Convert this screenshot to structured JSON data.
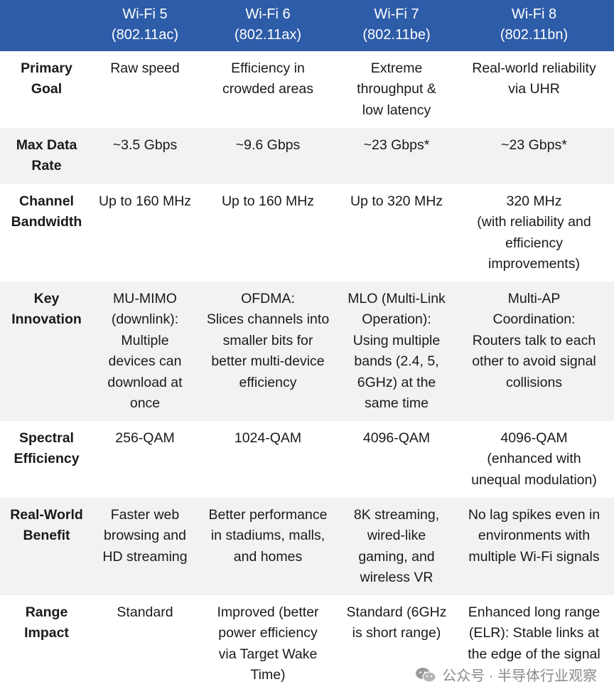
{
  "header": {
    "corner": "",
    "columns": [
      "Wi-Fi 5\n(802.11ac)",
      "Wi-Fi 6\n(802.11ax)",
      "Wi-Fi 7\n(802.11be)",
      "Wi-Fi 8\n(802.11bn)"
    ]
  },
  "rows": [
    {
      "label": "Primary\nGoal",
      "cells": [
        "Raw speed",
        "Efficiency in\ncrowded areas",
        "Extreme\nthroughput &\nlow latency",
        "Real-world reliability\nvia UHR"
      ]
    },
    {
      "label": "Max Data\nRate",
      "cells": [
        "~3.5 Gbps",
        "~9.6 Gbps",
        "~23 Gbps*",
        "~23 Gbps*"
      ]
    },
    {
      "label": "Channel\nBandwidth",
      "cells": [
        "Up to 160 MHz",
        "Up to 160 MHz",
        "Up to 320 MHz",
        "320 MHz\n(with reliability and\nefficiency\nimprovements)"
      ]
    },
    {
      "label": "Key\nInnovation",
      "cells": [
        "MU-MIMO\n(downlink):\nMultiple\ndevices can\ndownload at\nonce",
        "OFDMA:\nSlices channels into\nsmaller bits for\nbetter multi-device\nefficiency",
        "MLO (Multi-Link\nOperation):\nUsing multiple\nbands (2.4, 5,\n6GHz) at the\nsame time",
        "Multi-AP\nCoordination:\nRouters talk to each\nother to avoid signal\ncollisions"
      ]
    },
    {
      "label": "Spectral\nEfficiency",
      "cells": [
        "256-QAM",
        "1024-QAM",
        "4096-QAM",
        "4096-QAM\n(enhanced with\nunequal modulation)"
      ]
    },
    {
      "label": "Real-World\nBenefit",
      "cells": [
        "Faster web\nbrowsing and\nHD streaming",
        "Better performance\nin stadiums, malls,\nand homes",
        "8K streaming,\nwired-like\ngaming, and\nwireless VR",
        "No lag spikes even in\nenvironments with\nmultiple Wi-Fi signals"
      ]
    },
    {
      "label": "Range\nImpact",
      "cells": [
        "Standard",
        "Improved (better\npower efficiency\nvia Target Wake\nTime)",
        "Standard (6GHz\nis short range)",
        "Enhanced long range\n(ELR): Stable links at\nthe edge of the signal"
      ]
    }
  ],
  "watermark": {
    "text": "公众号 · 半导体行业观察",
    "icon": "wechat-icon"
  },
  "colors": {
    "header_bg": "#2d5ca8",
    "stripe": "#f2f2f2"
  }
}
